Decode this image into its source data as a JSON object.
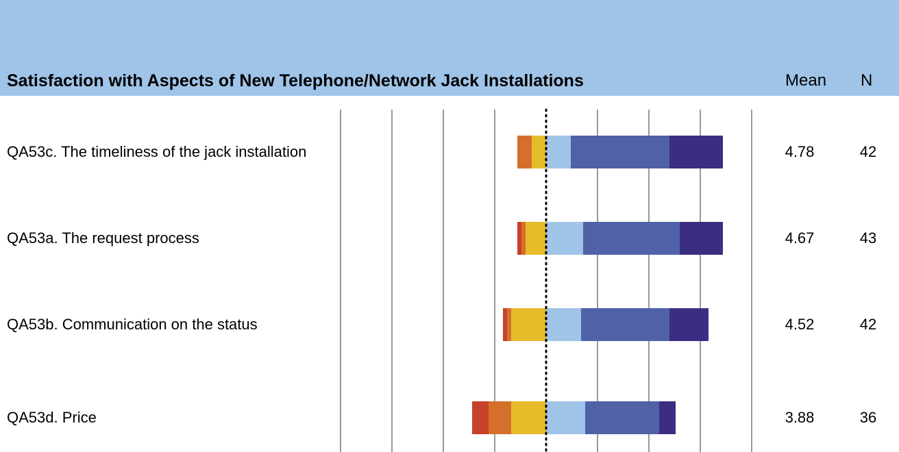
{
  "chart_data": {
    "type": "diverging_bar",
    "title": "Satisfaction with Aspects of New Telephone/Network Jack Installations",
    "mean_header": "Mean",
    "n_header": "N",
    "categories": [
      "QA53c. The timeliness of the jack installation",
      "QA53a. The request process",
      "QA53b. Communication on the status",
      "QA53d. Price"
    ],
    "series": [
      {
        "color": "#c8412b",
        "values": [
          0,
          -2,
          -2,
          -8
        ]
      },
      {
        "color": "#d4702c",
        "values": [
          -7,
          -2,
          -2,
          -11
        ]
      },
      {
        "color": "#e6bc2a",
        "values": [
          -7,
          -10,
          -17,
          -17
        ]
      },
      {
        "color": "#a0c4e8",
        "values": [
          12,
          18,
          17,
          19
        ]
      },
      {
        "color": "#4f62a8",
        "values": [
          48,
          47,
          43,
          36
        ]
      },
      {
        "color": "#3b2e82",
        "values": [
          26,
          21,
          19,
          8
        ]
      }
    ],
    "mean": [
      4.78,
      4.67,
      4.52,
      3.88
    ],
    "n": [
      42,
      43,
      42,
      36
    ],
    "xlim": [
      -100,
      100
    ],
    "xticks": [
      -100,
      -75,
      -50,
      -25,
      0,
      25,
      50,
      75,
      100
    ],
    "grid": true
  }
}
